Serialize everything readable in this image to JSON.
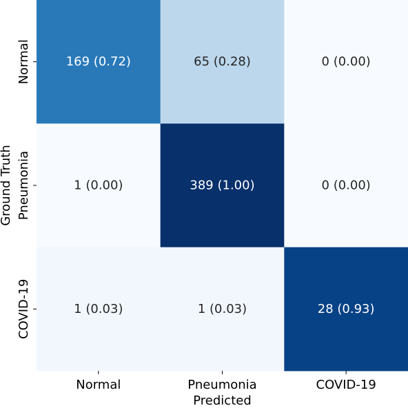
{
  "chart_data": {
    "type": "heatmap",
    "title": "",
    "xlabel": "Predicted",
    "ylabel": "Ground Truth",
    "x_categories": [
      "Normal",
      "Pneumonia",
      "COVID-19"
    ],
    "y_categories": [
      "Normal",
      "Pneumonia",
      "COVID-19"
    ],
    "counts": [
      [
        169,
        65,
        0
      ],
      [
        1,
        389,
        0
      ],
      [
        1,
        1,
        28
      ]
    ],
    "normalized": [
      [
        0.72,
        0.28,
        0.0
      ],
      [
        0.0,
        1.0,
        0.0
      ],
      [
        0.03,
        0.03,
        0.93
      ]
    ],
    "cell_labels": [
      [
        "169 (0.72)",
        "65 (0.28)",
        "0 (0.00)"
      ],
      [
        "1 (0.00)",
        "389 (1.00)",
        "0 (0.00)"
      ],
      [
        "1 (0.03)",
        "1 (0.03)",
        "28 (0.93)"
      ]
    ],
    "colormap": "Blues",
    "color_low": "#f7fbff",
    "color_high": "#08306b",
    "colorbar": false
  }
}
